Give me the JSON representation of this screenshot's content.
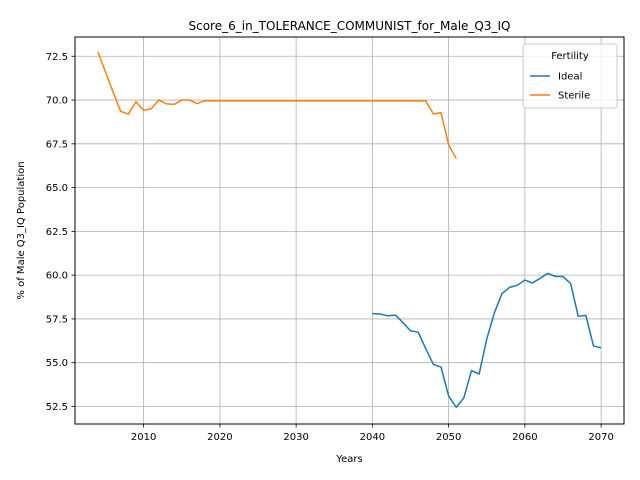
{
  "chart_data": {
    "type": "line",
    "title": "Score_6_in_TOLERANCE_COMMUNIST_for_Male_Q3_IQ",
    "xlabel": "Years",
    "ylabel": "% of Male Q3_IQ Population",
    "xlim": [
      2001,
      2073
    ],
    "ylim": [
      51.5,
      73.6
    ],
    "xticks": [
      2010,
      2020,
      2030,
      2040,
      2050,
      2060,
      2070
    ],
    "yticks": [
      52.5,
      55.0,
      57.5,
      60.0,
      62.5,
      65.0,
      67.5,
      70.0,
      72.5
    ],
    "grid": true,
    "legend": {
      "title": "Fertility",
      "position": "top-right"
    },
    "series": [
      {
        "name": "Ideal",
        "color": "#1f77b4",
        "x": [
          2040,
          2041,
          2042,
          2043,
          2044,
          2045,
          2046,
          2047,
          2048,
          2049,
          2050,
          2051,
          2052,
          2053,
          2054,
          2055,
          2056,
          2057,
          2058,
          2059,
          2060,
          2061,
          2062,
          2063,
          2064,
          2065,
          2066,
          2067,
          2068,
          2069,
          2070
        ],
        "y": [
          57.8,
          57.78,
          57.68,
          57.72,
          57.3,
          56.82,
          56.75,
          55.8,
          54.9,
          54.75,
          53.1,
          52.45,
          53.0,
          54.55,
          54.35,
          56.35,
          57.85,
          58.95,
          59.3,
          59.42,
          59.72,
          59.55,
          59.82,
          60.1,
          59.93,
          59.92,
          59.52,
          57.65,
          57.7,
          55.95,
          55.85
        ]
      },
      {
        "name": "Sterile",
        "color": "#ff7f0e",
        "x": [
          2004,
          2005,
          2006,
          2007,
          2008,
          2009,
          2010,
          2011,
          2012,
          2013,
          2014,
          2015,
          2016,
          2017,
          2018,
          2019,
          2020,
          2025,
          2030,
          2035,
          2040,
          2045,
          2046,
          2047,
          2048,
          2049,
          2050,
          2051
        ],
        "y": [
          72.75,
          71.6,
          70.45,
          69.35,
          69.2,
          69.9,
          69.42,
          69.5,
          70.0,
          69.78,
          69.75,
          70.0,
          70.0,
          69.8,
          69.95,
          69.95,
          69.95,
          69.95,
          69.95,
          69.95,
          69.95,
          69.95,
          69.95,
          69.95,
          69.2,
          69.28,
          67.45,
          66.65
        ]
      }
    ]
  }
}
